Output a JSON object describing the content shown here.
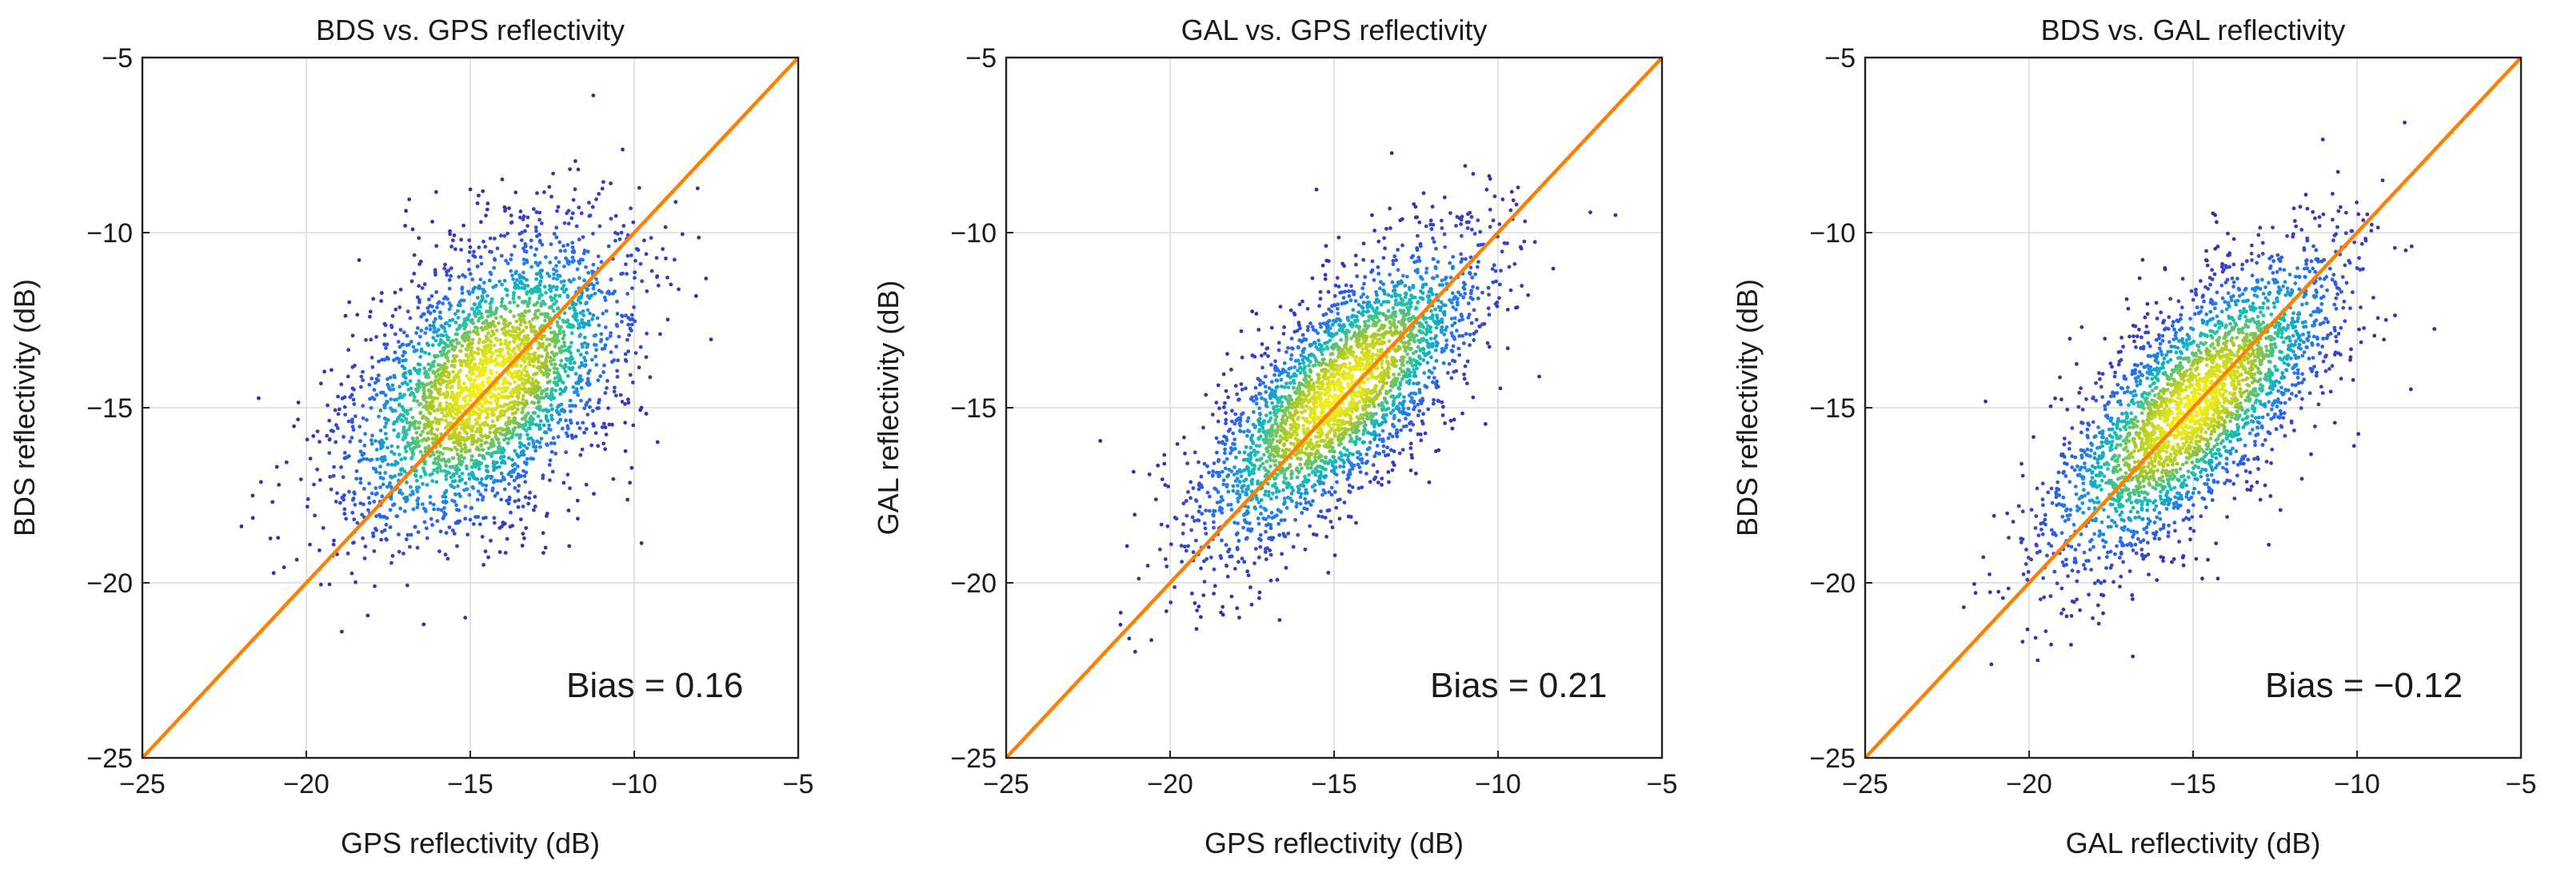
{
  "chart_data": [
    {
      "type": "scatter",
      "title": "BDS vs. GPS reflectivity",
      "xlabel": "GPS reflectivity (dB)",
      "ylabel": "BDS reflectivity (dB)",
      "xlim": [
        -25,
        -5
      ],
      "ylim": [
        -25,
        -5
      ],
      "xticks": [
        -25,
        -20,
        -15,
        -10,
        -5
      ],
      "yticks": [
        -25,
        -20,
        -15,
        -10,
        -5
      ],
      "tick_labels": [
        "−25",
        "−20",
        "−15",
        "−10",
        "−5"
      ],
      "grid": true,
      "bias_text": "Bias = 0.16",
      "bias": 0.16,
      "reference_line": {
        "label": "1:1",
        "from": [
          -25,
          -25
        ],
        "to": [
          -5,
          -5
        ],
        "color": "#ff7f00"
      },
      "density_cluster": {
        "center": [
          -14.5,
          -14.3
        ],
        "std_along": 2.6,
        "std_across": 1.45,
        "points": 3200
      }
    },
    {
      "type": "scatter",
      "title": "GAL vs. GPS reflectivity",
      "xlabel": "GPS reflectivity (dB)",
      "ylabel": "GAL reflectivity (dB)",
      "xlim": [
        -25,
        -5
      ],
      "ylim": [
        -25,
        -5
      ],
      "xticks": [
        -25,
        -20,
        -15,
        -10,
        -5
      ],
      "yticks": [
        -25,
        -20,
        -15,
        -10,
        -5
      ],
      "tick_labels": [
        "−25",
        "−20",
        "−15",
        "−10",
        "−5"
      ],
      "grid": true,
      "bias_text": "Bias = 0.21",
      "bias": 0.21,
      "reference_line": {
        "label": "1:1",
        "from": [
          -25,
          -25
        ],
        "to": [
          -5,
          -5
        ],
        "color": "#ff7f00"
      },
      "density_cluster": {
        "center": [
          -14.8,
          -14.6
        ],
        "std_along": 2.8,
        "std_across": 1.05,
        "points": 3000
      }
    },
    {
      "type": "scatter",
      "title": "BDS vs. GAL reflectivity",
      "xlabel": "GAL reflectivity (dB)",
      "ylabel": "BDS reflectivity (dB)",
      "xlim": [
        -25,
        -5
      ],
      "ylim": [
        -25,
        -5
      ],
      "xticks": [
        -25,
        -20,
        -15,
        -10,
        -5
      ],
      "yticks": [
        -25,
        -20,
        -15,
        -10,
        -5
      ],
      "tick_labels": [
        "−25",
        "−20",
        "−15",
        "−10",
        "−5"
      ],
      "grid": true,
      "bias_text": "Bias = −0.12",
      "bias": -0.12,
      "reference_line": {
        "label": "1:1",
        "from": [
          -25,
          -25
        ],
        "to": [
          -5,
          -5
        ],
        "color": "#ff7f00"
      },
      "density_cluster": {
        "center": [
          -15.0,
          -15.0
        ],
        "std_along": 2.9,
        "std_across": 1.1,
        "points": 3000
      }
    }
  ],
  "colors": {
    "reference_line": "#ff7f00",
    "density_low": "#3b2fd9",
    "density_mid": "#13b8c8",
    "density_high": "#ffe81a"
  }
}
